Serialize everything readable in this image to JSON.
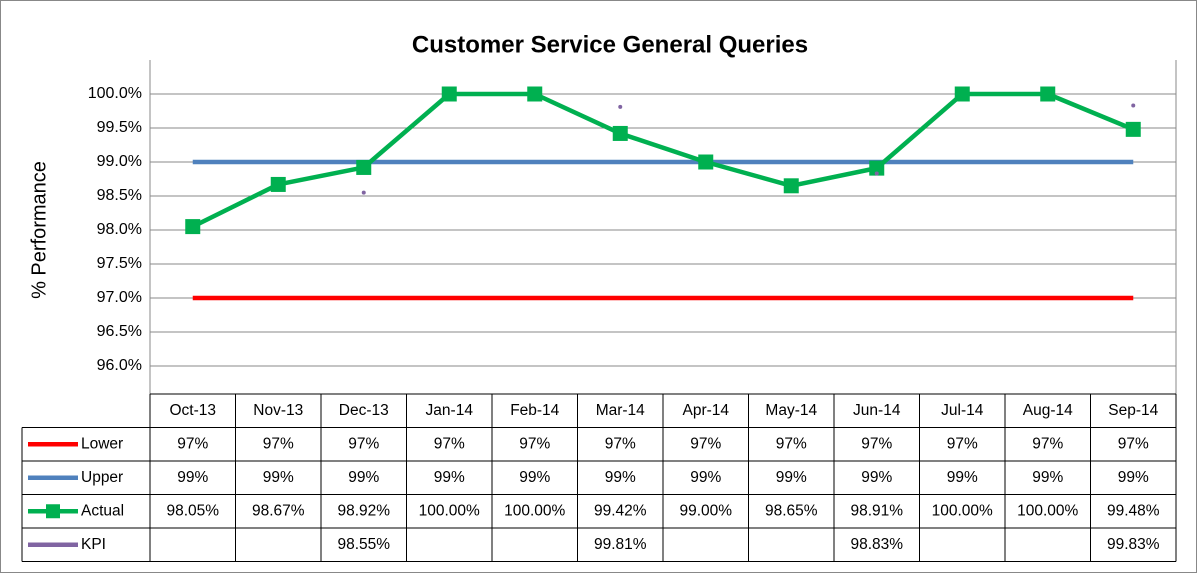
{
  "chart_data": {
    "type": "line",
    "title": "Customer Service General Queries",
    "y_label": "% Performance",
    "categories": [
      "Oct-13",
      "Nov-13",
      "Dec-13",
      "Jan-14",
      "Feb-14",
      "Mar-14",
      "Apr-14",
      "May-14",
      "Jun-14",
      "Jul-14",
      "Aug-14",
      "Sep-14"
    ],
    "ylim": [
      96,
      100
    ],
    "yticks": [
      {
        "value": 96,
        "label": "96.0%"
      },
      {
        "value": 96.5,
        "label": "96.5%"
      },
      {
        "value": 97,
        "label": "97.0%"
      },
      {
        "value": 97.5,
        "label": "97.5%"
      },
      {
        "value": 98,
        "label": "98.0%"
      },
      {
        "value": 98.5,
        "label": "98.5%"
      },
      {
        "value": 99,
        "label": "99.0%"
      },
      {
        "value": 99.5,
        "label": "99.5%"
      },
      {
        "value": 100,
        "label": "100.0%"
      }
    ],
    "grid": true,
    "series": [
      {
        "name": "Lower",
        "color": "#ff0000",
        "marker": false,
        "values": [
          97,
          97,
          97,
          97,
          97,
          97,
          97,
          97,
          97,
          97,
          97,
          97
        ],
        "value_labels": [
          "97%",
          "97%",
          "97%",
          "97%",
          "97%",
          "97%",
          "97%",
          "97%",
          "97%",
          "97%",
          "97%",
          "97%"
        ]
      },
      {
        "name": "Upper",
        "color": "#4f81bd",
        "marker": false,
        "values": [
          99,
          99,
          99,
          99,
          99,
          99,
          99,
          99,
          99,
          99,
          99,
          99
        ],
        "value_labels": [
          "99%",
          "99%",
          "99%",
          "99%",
          "99%",
          "99%",
          "99%",
          "99%",
          "99%",
          "99%",
          "99%",
          "99%"
        ]
      },
      {
        "name": "Actual",
        "color": "#00b050",
        "marker": true,
        "values": [
          98.05,
          98.67,
          98.92,
          100,
          100,
          99.42,
          99.0,
          98.65,
          98.91,
          100,
          100,
          99.48
        ],
        "value_labels": [
          "98.05%",
          "98.67%",
          "98.92%",
          "100.00%",
          "100.00%",
          "99.42%",
          "99.00%",
          "98.65%",
          "98.91%",
          "100.00%",
          "100.00%",
          "99.48%"
        ]
      },
      {
        "name": "KPI",
        "color": "#8064a2",
        "marker": false,
        "values": [
          null,
          null,
          98.55,
          null,
          null,
          99.81,
          null,
          null,
          98.83,
          null,
          null,
          99.83
        ],
        "value_labels": [
          null,
          null,
          "98.55%",
          null,
          null,
          "99.81%",
          null,
          null,
          "98.83%",
          null,
          null,
          "99.83%"
        ]
      }
    ]
  }
}
